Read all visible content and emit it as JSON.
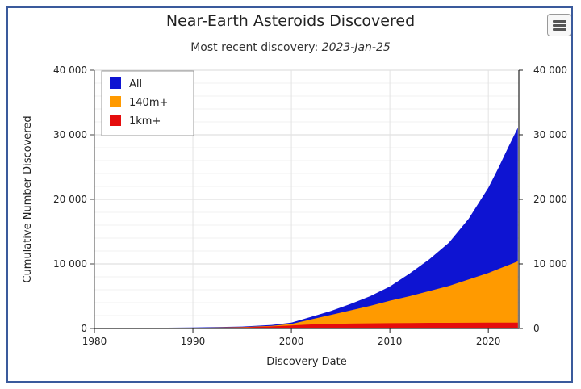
{
  "header": {
    "title": "Near-Earth Asteroids Discovered",
    "subtitle_prefix": "Most recent discovery: ",
    "subtitle_date": "2023-Jan-25"
  },
  "menu": {
    "icon": "hamburger-menu-icon"
  },
  "chart_data": {
    "type": "area",
    "title": "Near-Earth Asteroids Discovered",
    "subtitle": "Most recent discovery: 2023-Jan-25",
    "xlabel": "Discovery Date",
    "ylabel": "Cumulative Number Discovered",
    "xlim": [
      1980,
      2023.1
    ],
    "ylim": [
      0,
      40000
    ],
    "x_ticks": [
      1980,
      1990,
      2000,
      2010,
      2020
    ],
    "y_ticks": [
      0,
      10000,
      20000,
      30000,
      40000
    ],
    "y_tick_labels": [
      "0",
      "10 000",
      "20 000",
      "30 000",
      "40 000"
    ],
    "x_tick_labels": [
      "1980",
      "1990",
      "2000",
      "2010",
      "2020"
    ],
    "right_axis_mirror": true,
    "grid": true,
    "legend_position": "top-left",
    "x": [
      1980,
      1985,
      1990,
      1995,
      1998,
      2000,
      2002,
      2004,
      2006,
      2008,
      2010,
      2012,
      2014,
      2016,
      2018,
      2020,
      2021,
      2022,
      2023
    ],
    "series": [
      {
        "name": "All",
        "color": "#0e14d2",
        "values": [
          50,
          90,
          150,
          300,
          550,
          900,
          1800,
          2700,
          3800,
          5000,
          6500,
          8500,
          10700,
          13300,
          17000,
          21800,
          24800,
          28000,
          31100
        ]
      },
      {
        "name": "140m+",
        "color": "#ff9a00",
        "values": [
          30,
          60,
          100,
          210,
          400,
          700,
          1400,
          2100,
          2800,
          3500,
          4300,
          5000,
          5800,
          6600,
          7600,
          8600,
          9200,
          9800,
          10400
        ]
      },
      {
        "name": "1km+",
        "color": "#e50d0d",
        "values": [
          20,
          50,
          80,
          170,
          320,
          480,
          620,
          700,
          760,
          800,
          830,
          850,
          870,
          880,
          890,
          900,
          905,
          910,
          915
        ]
      }
    ]
  }
}
